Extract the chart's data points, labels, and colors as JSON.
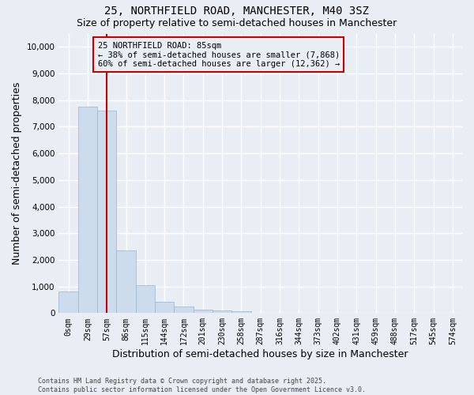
{
  "title": "25, NORTHFIELD ROAD, MANCHESTER, M40 3SZ",
  "subtitle": "Size of property relative to semi-detached houses in Manchester",
  "xlabel": "Distribution of semi-detached houses by size in Manchester",
  "ylabel": "Number of semi-detached properties",
  "bin_labels": [
    "0sqm",
    "29sqm",
    "57sqm",
    "86sqm",
    "115sqm",
    "144sqm",
    "172sqm",
    "201sqm",
    "230sqm",
    "258sqm",
    "287sqm",
    "316sqm",
    "344sqm",
    "373sqm",
    "402sqm",
    "431sqm",
    "459sqm",
    "488sqm",
    "517sqm",
    "545sqm",
    "574sqm"
  ],
  "bar_heights": [
    800,
    7750,
    7600,
    2350,
    1050,
    430,
    260,
    130,
    85,
    55,
    20,
    0,
    0,
    0,
    0,
    0,
    0,
    0,
    0,
    0,
    0
  ],
  "bar_color": "#ccdcec",
  "bar_edgecolor": "#9ab4cc",
  "property_bin_index": 2,
  "vline_color": "#cc0000",
  "annotation_text": "25 NORTHFIELD ROAD: 85sqm\n← 38% of semi-detached houses are smaller (7,868)\n60% of semi-detached houses are larger (12,362) →",
  "annotation_box_color": "#cc0000",
  "ylim": [
    0,
    10500
  ],
  "yticks": [
    0,
    1000,
    2000,
    3000,
    4000,
    5000,
    6000,
    7000,
    8000,
    9000,
    10000
  ],
  "background_color": "#e8eef4",
  "grid_color": "#ffffff",
  "footer_text": "Contains HM Land Registry data © Crown copyright and database right 2025.\nContains public sector information licensed under the Open Government Licence v3.0.",
  "title_fontsize": 10,
  "subtitle_fontsize": 9,
  "axis_label_fontsize": 9,
  "tick_fontsize": 7,
  "annotation_fontsize": 7.5,
  "footer_fontsize": 6
}
